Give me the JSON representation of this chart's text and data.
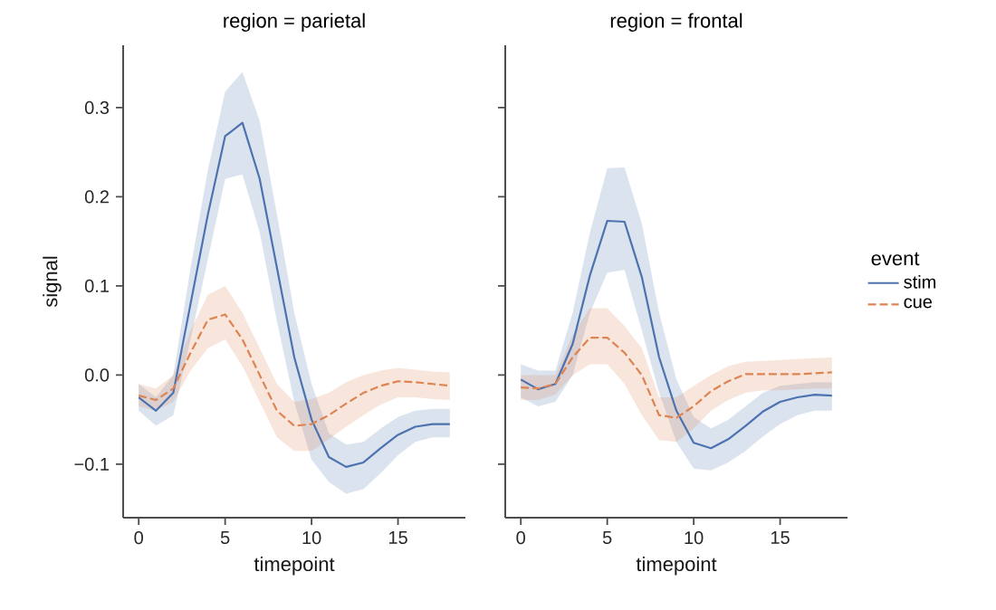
{
  "chart_data": [
    {
      "type": "line",
      "title": "region = parietal",
      "xlabel": "timepoint",
      "ylabel": "signal",
      "x": [
        0,
        1,
        2,
        3,
        4,
        5,
        6,
        7,
        8,
        9,
        10,
        11,
        12,
        13,
        14,
        15,
        16,
        17,
        18
      ],
      "xlim": [
        -0.9,
        18.9
      ],
      "ylim": [
        -0.16,
        0.37
      ],
      "xticks": [
        0,
        5,
        10,
        15
      ],
      "yticks": [
        {
          "value": -0.1,
          "label": "−0.1"
        },
        {
          "value": 0,
          "label": "0.0"
        },
        {
          "value": 0.1,
          "label": "0.1"
        },
        {
          "value": 0.2,
          "label": "0.2"
        },
        {
          "value": 0.3,
          "label": "0.3"
        }
      ],
      "grid": false,
      "series": [
        {
          "color": "#4c72b0",
          "line_style": "solid",
          "values": [
            -0.025,
            -0.04,
            -0.02,
            0.08,
            0.18,
            0.268,
            0.283,
            0.22,
            0.12,
            0.02,
            -0.05,
            -0.092,
            -0.103,
            -0.098,
            -0.082,
            -0.067,
            -0.058,
            -0.055,
            -0.055
          ],
          "lower": [
            -0.04,
            -0.057,
            -0.045,
            0.04,
            0.13,
            0.22,
            0.225,
            0.16,
            0.06,
            -0.03,
            -0.095,
            -0.12,
            -0.133,
            -0.128,
            -0.11,
            -0.09,
            -0.075,
            -0.07,
            -0.07
          ],
          "upper": [
            -0.01,
            -0.025,
            0.0,
            0.12,
            0.23,
            0.318,
            0.34,
            0.285,
            0.18,
            0.07,
            -0.01,
            -0.065,
            -0.078,
            -0.075,
            -0.06,
            -0.047,
            -0.04,
            -0.038,
            -0.038
          ]
        },
        {
          "color": "#dd8452",
          "line_style": "dashed",
          "values": [
            -0.023,
            -0.028,
            -0.015,
            0.025,
            0.062,
            0.068,
            0.04,
            0.0,
            -0.04,
            -0.057,
            -0.055,
            -0.045,
            -0.032,
            -0.02,
            -0.012,
            -0.007,
            -0.008,
            -0.01,
            -0.012
          ],
          "lower": [
            -0.035,
            -0.04,
            -0.03,
            0.005,
            0.03,
            0.04,
            0.01,
            -0.03,
            -0.07,
            -0.085,
            -0.085,
            -0.072,
            -0.058,
            -0.045,
            -0.033,
            -0.025,
            -0.025,
            -0.027,
            -0.028
          ],
          "upper": [
            -0.01,
            -0.015,
            0.0,
            0.05,
            0.09,
            0.1,
            0.07,
            0.03,
            -0.01,
            -0.03,
            -0.027,
            -0.02,
            -0.008,
            0.0,
            0.005,
            0.008,
            0.006,
            0.004,
            0.003
          ]
        }
      ]
    },
    {
      "type": "line",
      "title": "region = frontal",
      "xlabel": "timepoint",
      "x": [
        0,
        1,
        2,
        3,
        4,
        5,
        6,
        7,
        8,
        9,
        10,
        11,
        12,
        13,
        14,
        15,
        16,
        17,
        18
      ],
      "xlim": [
        -0.9,
        18.9
      ],
      "ylim": [
        -0.16,
        0.37
      ],
      "xticks": [
        0,
        5,
        10,
        15
      ],
      "yticks": [
        {
          "value": -0.1,
          "label": null
        },
        {
          "value": 0,
          "label": null
        },
        {
          "value": 0.1,
          "label": null
        },
        {
          "value": 0.2,
          "label": null
        },
        {
          "value": 0.3,
          "label": null
        }
      ],
      "tick_labels": "x",
      "grid": false,
      "legend": "right",
      "legend_title": "event",
      "series": [
        {
          "name": "stim",
          "color": "#4c72b0",
          "line_style": "solid",
          "values": [
            -0.005,
            -0.016,
            -0.01,
            0.035,
            0.112,
            0.173,
            0.172,
            0.11,
            0.02,
            -0.04,
            -0.076,
            -0.082,
            -0.072,
            -0.057,
            -0.041,
            -0.03,
            -0.025,
            -0.022,
            -0.023
          ],
          "lower": [
            -0.025,
            -0.035,
            -0.03,
            0.0,
            0.07,
            0.115,
            0.118,
            0.05,
            -0.02,
            -0.075,
            -0.105,
            -0.107,
            -0.098,
            -0.085,
            -0.069,
            -0.055,
            -0.045,
            -0.04,
            -0.04
          ],
          "upper": [
            0.012,
            0.005,
            0.005,
            0.07,
            0.16,
            0.232,
            0.233,
            0.17,
            0.07,
            -0.005,
            -0.047,
            -0.06,
            -0.05,
            -0.035,
            -0.02,
            -0.012,
            -0.01,
            -0.008,
            -0.008
          ]
        },
        {
          "name": "cue",
          "color": "#dd8452",
          "line_style": "dashed",
          "values": [
            -0.014,
            -0.015,
            -0.01,
            0.02,
            0.042,
            0.042,
            0.025,
            0.0,
            -0.045,
            -0.048,
            -0.035,
            -0.018,
            -0.007,
            0.001,
            0.001,
            0.001,
            0.001,
            0.002,
            0.003
          ],
          "lower": [
            -0.028,
            -0.028,
            -0.022,
            0.0,
            0.012,
            0.012,
            -0.01,
            -0.045,
            -0.073,
            -0.075,
            -0.06,
            -0.04,
            -0.028,
            -0.02,
            -0.017,
            -0.017,
            -0.016,
            -0.015,
            -0.015
          ],
          "upper": [
            0.0,
            0.0,
            0.0,
            0.045,
            0.075,
            0.075,
            0.055,
            0.03,
            -0.025,
            -0.025,
            -0.012,
            0.0,
            0.01,
            0.015,
            0.016,
            0.017,
            0.018,
            0.019,
            0.02
          ]
        }
      ]
    }
  ]
}
